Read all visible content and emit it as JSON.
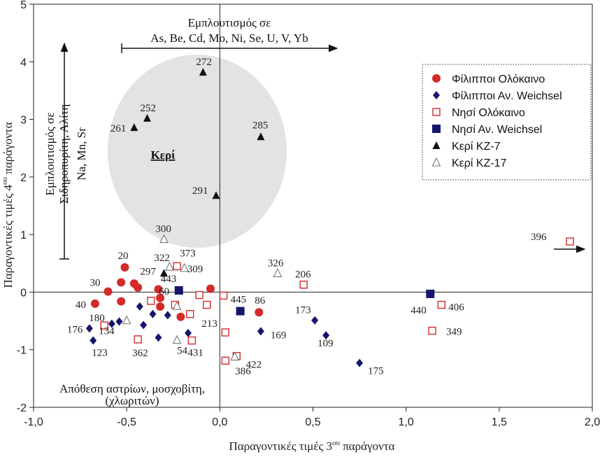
{
  "chart_data": {
    "type": "scatter",
    "xlabel": "Παραγοντικές τιμές 3ου παράγοντα",
    "ylabel": "Παραγοντικές τιμές 4ου παράγοντα",
    "xlim": [
      -1.0,
      2.0
    ],
    "ylim": [
      -2,
      5
    ],
    "xticks": [
      -1.0,
      -0.5,
      0.0,
      0.5,
      1.0,
      1.5,
      2.0
    ],
    "xtick_labels": [
      "-1,0",
      "-0,5",
      "0,0",
      "0,5",
      "1,0",
      "1,5",
      "2,0"
    ],
    "yticks": [
      -2,
      -1,
      0,
      1,
      2,
      3,
      4,
      5
    ],
    "ytick_labels": [
      "-2",
      "-1",
      "0",
      "1",
      "2",
      "3",
      "4",
      "5"
    ],
    "legend_position": "top-right",
    "colors": {
      "red": "#d42a2a",
      "navy": "#15166b",
      "black": "#111111",
      "grey": "#777777",
      "ellipse": "#e3e3e3"
    },
    "series": [
      {
        "name": "Φίλιπποι Ολόκαινο",
        "marker": "circle-red",
        "points": [
          {
            "x": -0.51,
            "y": 0.43,
            "label": "20"
          },
          {
            "x": -0.6,
            "y": 0.01,
            "label": "30"
          },
          {
            "x": -0.67,
            "y": -0.2,
            "label": "40"
          },
          {
            "x": -0.53,
            "y": 0.17
          },
          {
            "x": -0.46,
            "y": 0.15
          },
          {
            "x": -0.44,
            "y": 0.08
          },
          {
            "x": -0.53,
            "y": -0.16
          },
          {
            "x": -0.33,
            "y": 0.05
          },
          {
            "x": -0.32,
            "y": -0.1
          },
          {
            "x": -0.32,
            "y": -0.25
          },
          {
            "x": -0.21,
            "y": -0.43
          },
          {
            "x": -0.05,
            "y": 0.06
          },
          {
            "x": 0.21,
            "y": -0.35,
            "label": "86"
          }
        ]
      },
      {
        "name": "Φίλιπποι Αν. Weichsel",
        "marker": "diamond-navy",
        "points": [
          {
            "x": -0.7,
            "y": -0.63,
            "label": "176"
          },
          {
            "x": -0.68,
            "y": -0.84,
            "label": "123"
          },
          {
            "x": -0.58,
            "y": -0.55
          },
          {
            "x": -0.54,
            "y": -0.51
          },
          {
            "x": -0.43,
            "y": -0.25
          },
          {
            "x": -0.41,
            "y": -0.57
          },
          {
            "x": -0.36,
            "y": -0.38
          },
          {
            "x": -0.33,
            "y": -0.79
          },
          {
            "x": -0.28,
            "y": -0.4
          },
          {
            "x": -0.17,
            "y": -0.71
          },
          {
            "x": 0.22,
            "y": -0.68,
            "label": "169"
          },
          {
            "x": 0.51,
            "y": -0.49,
            "label": "173"
          },
          {
            "x": 0.57,
            "y": -0.75,
            "label": "109"
          },
          {
            "x": 0.75,
            "y": -1.23,
            "label": "175"
          }
        ]
      },
      {
        "name": "Νησί Ολόκαινο",
        "marker": "square-red-open",
        "points": [
          {
            "x": -0.62,
            "y": -0.58,
            "label": "180"
          },
          {
            "x": -0.44,
            "y": -0.82,
            "label": "362"
          },
          {
            "x": -0.37,
            "y": -0.15
          },
          {
            "x": -0.23,
            "y": 0.45,
            "label": "373"
          },
          {
            "x": -0.24,
            "y": -0.22
          },
          {
            "x": -0.16,
            "y": -0.38
          },
          {
            "x": -0.15,
            "y": -0.84,
            "label": "431"
          },
          {
            "x": -0.11,
            "y": -0.05
          },
          {
            "x": -0.07,
            "y": -0.22
          },
          {
            "x": 0.02,
            "y": -0.06
          },
          {
            "x": 0.03,
            "y": -0.7,
            "label": "213"
          },
          {
            "x": 0.03,
            "y": -1.19
          },
          {
            "x": 0.09,
            "y": -1.11,
            "label": "386"
          },
          {
            "x": 0.45,
            "y": 0.13,
            "label": "206"
          },
          {
            "x": 1.14,
            "y": -0.67,
            "label": "349"
          },
          {
            "x": 1.19,
            "y": -0.22,
            "label": "406"
          },
          {
            "x": 1.88,
            "y": 0.88,
            "label": "396"
          }
        ]
      },
      {
        "name": "Νησί Αν. Weichsel",
        "marker": "square-navy",
        "points": [
          {
            "x": -0.22,
            "y": 0.03,
            "label": "443"
          },
          {
            "x": 0.11,
            "y": -0.33,
            "label": "445"
          },
          {
            "x": 1.13,
            "y": -0.03,
            "label": "440"
          }
        ]
      },
      {
        "name": "Κερί ΚΖ-7",
        "marker": "triangle-black",
        "points": [
          {
            "x": -0.09,
            "y": 3.82,
            "label": "272"
          },
          {
            "x": -0.39,
            "y": 3.02,
            "label": "252"
          },
          {
            "x": -0.46,
            "y": 2.86,
            "label": "261"
          },
          {
            "x": 0.22,
            "y": 2.7,
            "label": "285"
          },
          {
            "x": -0.02,
            "y": 1.68,
            "label": "291"
          },
          {
            "x": -0.3,
            "y": 0.33,
            "label": "297"
          }
        ]
      },
      {
        "name": "Κερί ΚΖ-17",
        "marker": "triangle-open",
        "points": [
          {
            "x": -0.3,
            "y": 0.92,
            "label": "300"
          },
          {
            "x": -0.27,
            "y": 0.44,
            "label": "322"
          },
          {
            "x": -0.19,
            "y": 0.42,
            "label": "309"
          },
          {
            "x": 0.31,
            "y": 0.33,
            "label": "326"
          },
          {
            "x": -0.23,
            "y": -0.24,
            "label": "60"
          },
          {
            "x": -0.5,
            "y": -0.49,
            "label": "134"
          },
          {
            "x": -0.23,
            "y": -0.83,
            "label": "54"
          },
          {
            "x": 0.08,
            "y": -1.12,
            "label": "422"
          }
        ]
      }
    ],
    "annotations": {
      "top_title": "Εμπλουτισμός σε",
      "top_elements": "As, Be, Cd, Mo, Ni, Se, U, V, Yb",
      "left_line1": "Εμπλουτισμός σε",
      "left_line2": "Σιδηροπυρίτη, Αλίτη",
      "left_line3": "Na, Mn, Sr",
      "region_label": "Κερί",
      "bottom_line1": "Απόθεση αστρίων, μοσχοβίτη,",
      "bottom_line2": "(χλωριτών)"
    },
    "ylabel_parts": {
      "pre": "Παραγοντικές τιμές 4",
      "sup": "ου",
      "post": " παράγοντα"
    },
    "xlabel_parts": {
      "pre": "Παραγοντικές τιμές 3",
      "sup": "ου",
      "post": " παράγοντα"
    }
  }
}
